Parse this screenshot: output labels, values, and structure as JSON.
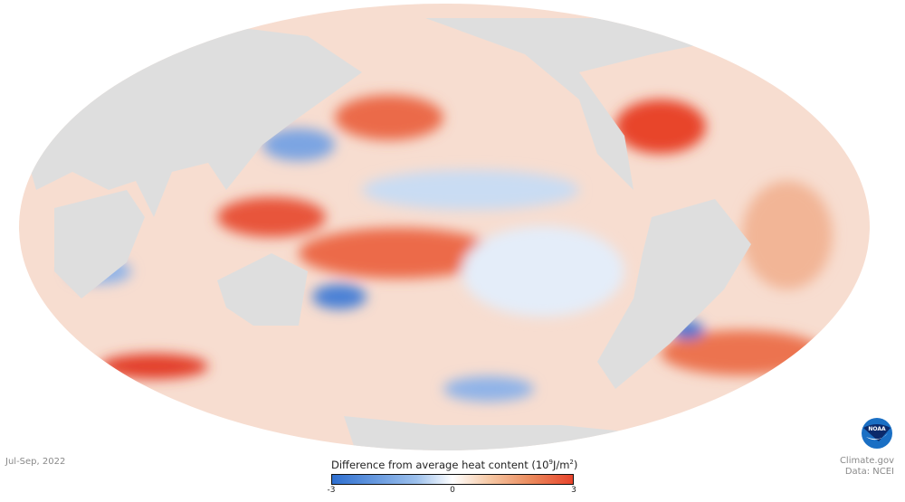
{
  "map": {
    "projection": "Mollweide",
    "land_color": "#dedede",
    "period": "Jul-Sep, 2022"
  },
  "legend": {
    "title": "Difference from average heat content",
    "unit_base": "(10",
    "unit_exp": "9",
    "unit_mid": "J/m",
    "unit_exp2": "2",
    "unit_end": ")",
    "min_label": "-3",
    "mid_label": "0",
    "max_label": "3",
    "range": [
      -3,
      3
    ],
    "colors": {
      "low": "#2e6fd0",
      "mid": "#ffffff",
      "high": "#e8442c"
    }
  },
  "credits": {
    "logo_text": "NOAA",
    "source": "Climate.gov",
    "data": "Data: NCEI"
  }
}
